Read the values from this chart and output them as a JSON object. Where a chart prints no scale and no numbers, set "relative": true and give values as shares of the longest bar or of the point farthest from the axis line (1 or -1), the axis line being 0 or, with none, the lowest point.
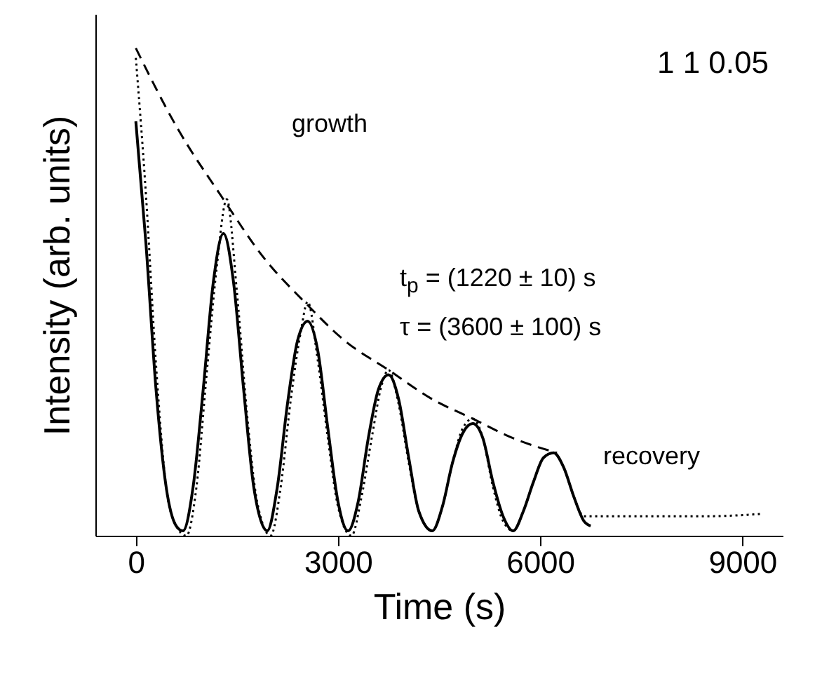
{
  "chart_data": {
    "type": "line",
    "xlabel": "Time (s)",
    "ylabel": "Intensity (arb. units)",
    "relative": true,
    "xlim": [
      -600,
      9600
    ],
    "xticks": [
      0,
      3000,
      6000,
      9000
    ],
    "grid": false,
    "marker": "none",
    "annotations": [
      "1 1 0.05",
      "growth",
      "recovery",
      "t$_{p}$ = (1220 ± 10) s",
      "τ = (3600 ± 100) s"
    ],
    "series": [
      {
        "color": "#000000",
        "line_style": "solid",
        "x": [
          0,
          150,
          300,
          450,
          600,
          700,
          850,
          1000,
          1150,
          1300,
          1450,
          1600,
          1750,
          1950,
          2100,
          2250,
          2400,
          2550,
          2700,
          2850,
          3000,
          3150,
          3300,
          3450,
          3600,
          3750,
          3900,
          4050,
          4200,
          4400,
          4550,
          4700,
          4850,
          5000,
          5150,
          5300,
          5450,
          5600,
          5750,
          5900,
          6050,
          6200,
          6350,
          6500,
          6650,
          6750
        ],
        "values": [
          0.85,
          0.6,
          0.3,
          0.1,
          0.02,
          0.01,
          0.1,
          0.3,
          0.52,
          0.62,
          0.52,
          0.3,
          0.1,
          0.01,
          0.1,
          0.27,
          0.4,
          0.44,
          0.38,
          0.22,
          0.07,
          0.01,
          0.07,
          0.2,
          0.3,
          0.33,
          0.28,
          0.16,
          0.05,
          0.01,
          0.06,
          0.15,
          0.21,
          0.23,
          0.2,
          0.11,
          0.04,
          0.01,
          0.05,
          0.11,
          0.16,
          0.17,
          0.14,
          0.08,
          0.03,
          0.02
        ]
      },
      {
        "color": "#000000",
        "line_style": "dotted",
        "x": [
          0,
          150,
          300,
          450,
          600,
          750,
          900,
          1050,
          1200,
          1350,
          1500,
          1650,
          1800,
          2000,
          2150,
          2300,
          2450,
          2550,
          2700,
          2850,
          3000,
          3200,
          3350,
          3500,
          3650,
          3750,
          3900,
          4050,
          4200,
          4400,
          4550,
          4700,
          4850,
          5000,
          5150,
          5300,
          5450,
          5600,
          5750,
          5900,
          6050,
          6200,
          6350,
          6500,
          6650,
          6800,
          7500,
          8500,
          9300
        ],
        "values": [
          0.98,
          0.7,
          0.35,
          0.1,
          0.02,
          0,
          0.1,
          0.33,
          0.55,
          0.69,
          0.5,
          0.25,
          0.07,
          0,
          0.1,
          0.28,
          0.42,
          0.48,
          0.36,
          0.2,
          0.06,
          0,
          0.08,
          0.2,
          0.31,
          0.34,
          0.27,
          0.15,
          0.05,
          0.01,
          0.06,
          0.15,
          0.22,
          0.24,
          0.2,
          0.1,
          0.03,
          0.01,
          0.05,
          0.11,
          0.16,
          0.17,
          0.14,
          0.08,
          0.04,
          0.04,
          0.04,
          0.04,
          0.045
        ]
      },
      {
        "color": "#000000",
        "line_style": "dashed",
        "x": [
          0,
          600,
          1300,
          1900,
          2500,
          3100,
          3750,
          4400,
          5000,
          5600,
          6250
        ],
        "values": [
          1,
          0.84,
          0.69,
          0.57,
          0.48,
          0.4,
          0.34,
          0.28,
          0.24,
          0.2,
          0.17
        ]
      }
    ]
  }
}
